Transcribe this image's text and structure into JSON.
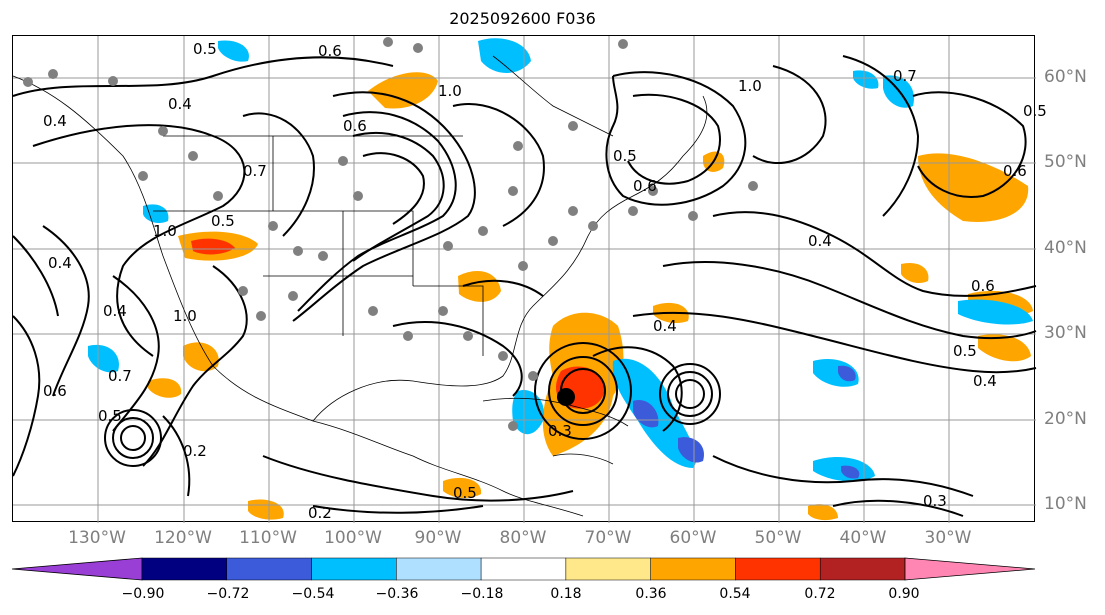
{
  "title": "2025092600 F036",
  "lon_labels": [
    "130°W",
    "120°W",
    "110°W",
    "100°W",
    "90°W",
    "80°W",
    "70°W",
    "60°W",
    "50°W",
    "40°W",
    "30°W"
  ],
  "lat_labels": [
    "60°N",
    "50°N",
    "40°N",
    "30°N",
    "20°N",
    "10°N"
  ],
  "colorbar": {
    "ticks": [
      "−0.90",
      "−0.72",
      "−0.54",
      "−0.36",
      "−0.18",
      "0.18",
      "0.36",
      "0.54",
      "0.72",
      "0.90"
    ],
    "colors": [
      "#9a3fd6",
      "#000080",
      "#3b5bdb",
      "#00bfff",
      "#b0e0ff",
      "#ffffff",
      "#ffe88a",
      "#ffa500",
      "#ff3300",
      "#b22222",
      "#ff85b3"
    ]
  },
  "contour_labels": [
    "0.5",
    "0.6",
    "0.7",
    "0.4",
    "1.0",
    "0.5",
    "0.6",
    "0.5",
    "1.0",
    "0.4",
    "0.6",
    "0.4",
    "0.5",
    "0.4",
    "0.6",
    "1.0",
    "0.4",
    "0.7",
    "0.4",
    "0.5",
    "0.3",
    "0.2",
    "0.3",
    "0.5",
    "0.2",
    "0.5",
    "0.6",
    "0.7",
    "1.0",
    "0.4",
    "0.6"
  ],
  "colors": {
    "fill_pos": "#ffa500",
    "fill_pos2": "#ff3300",
    "fill_neg": "#00bfff",
    "fill_neg2": "#3b5bdb",
    "station": "#808080",
    "grid": "#999999"
  }
}
